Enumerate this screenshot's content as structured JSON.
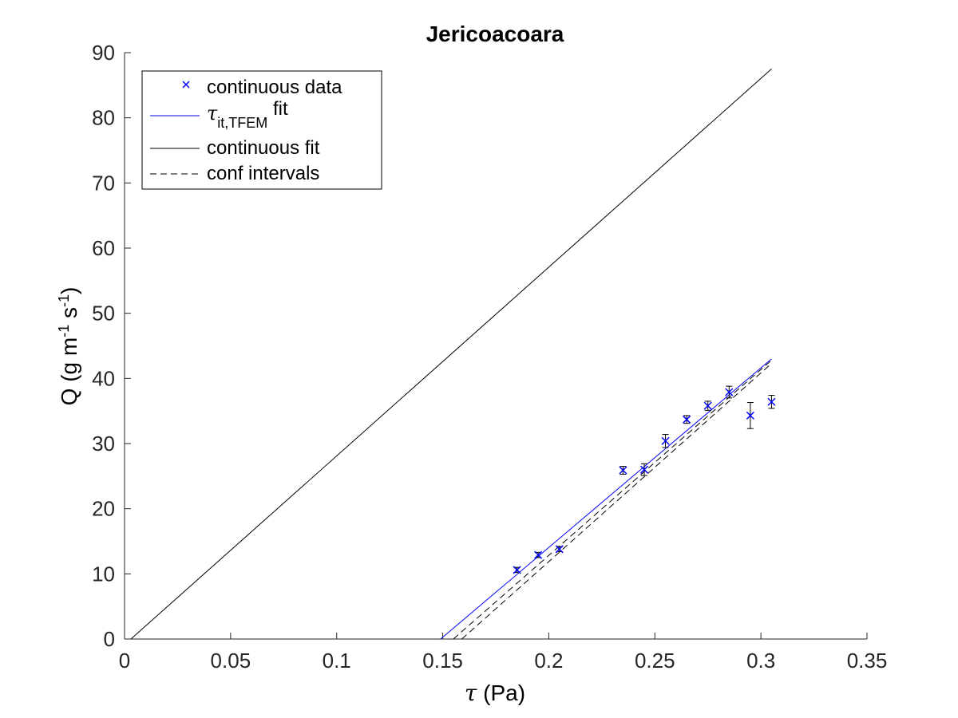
{
  "chart_data": {
    "type": "scatter",
    "title": "Jericoacoara",
    "xlabel_symbol": "τ",
    "xlabel_unit": " (Pa)",
    "ylabel": {
      "prefix": "Q (g m",
      "exp1": "-1",
      "mid": " s",
      "exp2": "-1",
      "suffix": ")"
    },
    "xlim": [
      0,
      0.35
    ],
    "ylim": [
      0,
      90
    ],
    "xticks": [
      0,
      0.05,
      0.1,
      0.15,
      0.2,
      0.25,
      0.3,
      0.35
    ],
    "xtick_labels": [
      "0",
      "0.05",
      "0.1",
      "0.15",
      "0.2",
      "0.25",
      "0.3",
      "0.35"
    ],
    "yticks": [
      0,
      10,
      20,
      30,
      40,
      50,
      60,
      70,
      80,
      90
    ],
    "ytick_labels": [
      "0",
      "10",
      "20",
      "30",
      "40",
      "50",
      "60",
      "70",
      "80",
      "90"
    ],
    "grid": false,
    "legend_position": "top-left",
    "colors": {
      "data": "#0000ff",
      "fit_blue": "#0000ff",
      "fit_black": "#000000"
    },
    "data_series": {
      "name": "continuous data",
      "marker": "x",
      "points": [
        {
          "x": 0.185,
          "y": 10.6,
          "err": 0.4
        },
        {
          "x": 0.195,
          "y": 12.9,
          "err": 0.4
        },
        {
          "x": 0.205,
          "y": 13.8,
          "err": 0.4
        },
        {
          "x": 0.235,
          "y": 25.9,
          "err": 0.6
        },
        {
          "x": 0.245,
          "y": 26.0,
          "err": 0.9
        },
        {
          "x": 0.255,
          "y": 30.4,
          "err": 1.0
        },
        {
          "x": 0.265,
          "y": 33.7,
          "err": 0.6
        },
        {
          "x": 0.275,
          "y": 35.8,
          "err": 0.7
        },
        {
          "x": 0.285,
          "y": 37.9,
          "err": 0.9
        },
        {
          "x": 0.295,
          "y": 34.3,
          "err": 2.0
        },
        {
          "x": 0.305,
          "y": 36.4,
          "err": 1.0
        }
      ]
    },
    "lines": [
      {
        "name_symbol": "τ",
        "name_sub": "it,TFEM",
        "name_suffix": " fit",
        "style": "solid",
        "color": "#0000ff",
        "x": [
          0.149,
          0.305
        ],
        "y": [
          0,
          43.0
        ]
      },
      {
        "name": "continuous fit",
        "style": "solid",
        "color": "#000000",
        "x": [
          0.003,
          0.305
        ],
        "y": [
          0,
          87.5
        ]
      },
      {
        "name": "conf intervals",
        "style": "dashed",
        "color": "#000000",
        "x": [
          0.155,
          0.305
        ],
        "y": [
          0,
          42.8
        ]
      },
      {
        "name": "conf intervals",
        "style": "dashed",
        "color": "#000000",
        "x": [
          0.159,
          0.305
        ],
        "y": [
          0,
          42.3
        ]
      }
    ]
  }
}
